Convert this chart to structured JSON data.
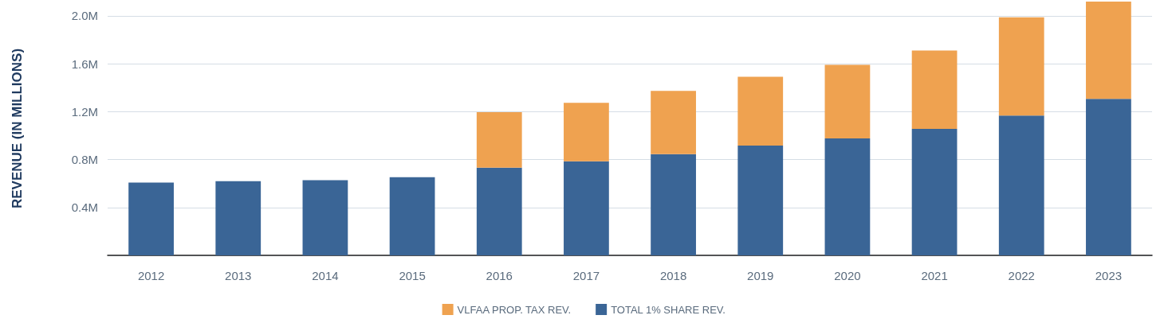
{
  "chart_data": {
    "type": "bar",
    "ylabel": "REVENUE (IN MILLIONS)",
    "stacked": true,
    "legend": "bottom",
    "grid": "y",
    "categories": [
      "2012",
      "2013",
      "2014",
      "2015",
      "2016",
      "2017",
      "2018",
      "2019",
      "2020",
      "2021",
      "2022",
      "2023"
    ],
    "series": [
      {
        "name": "TOTAL 1% SHARE REV.",
        "color": "#3a6596",
        "values": [
          607000,
          620000,
          627000,
          653000,
          733000,
          785000,
          845000,
          917000,
          977000,
          1056000,
          1168000,
          1307000
        ]
      },
      {
        "name": "VLFAA PROP. TAX REV.",
        "color": "#efa250",
        "values": [
          null,
          null,
          null,
          null,
          462000,
          489000,
          528000,
          575000,
          614000,
          654000,
          819000,
          812000
        ]
      }
    ],
    "ylim": [
      0,
      2119000
    ],
    "yticks": [
      {
        "value": 0,
        "label": null
      },
      {
        "value": 400000,
        "label": "0.4M"
      },
      {
        "value": 800000,
        "label": "0.8M"
      },
      {
        "value": 1200000,
        "label": "1.2M"
      },
      {
        "value": 1600000,
        "label": "1.6M"
      },
      {
        "value": 2000000,
        "label": "2.0M"
      }
    ]
  }
}
